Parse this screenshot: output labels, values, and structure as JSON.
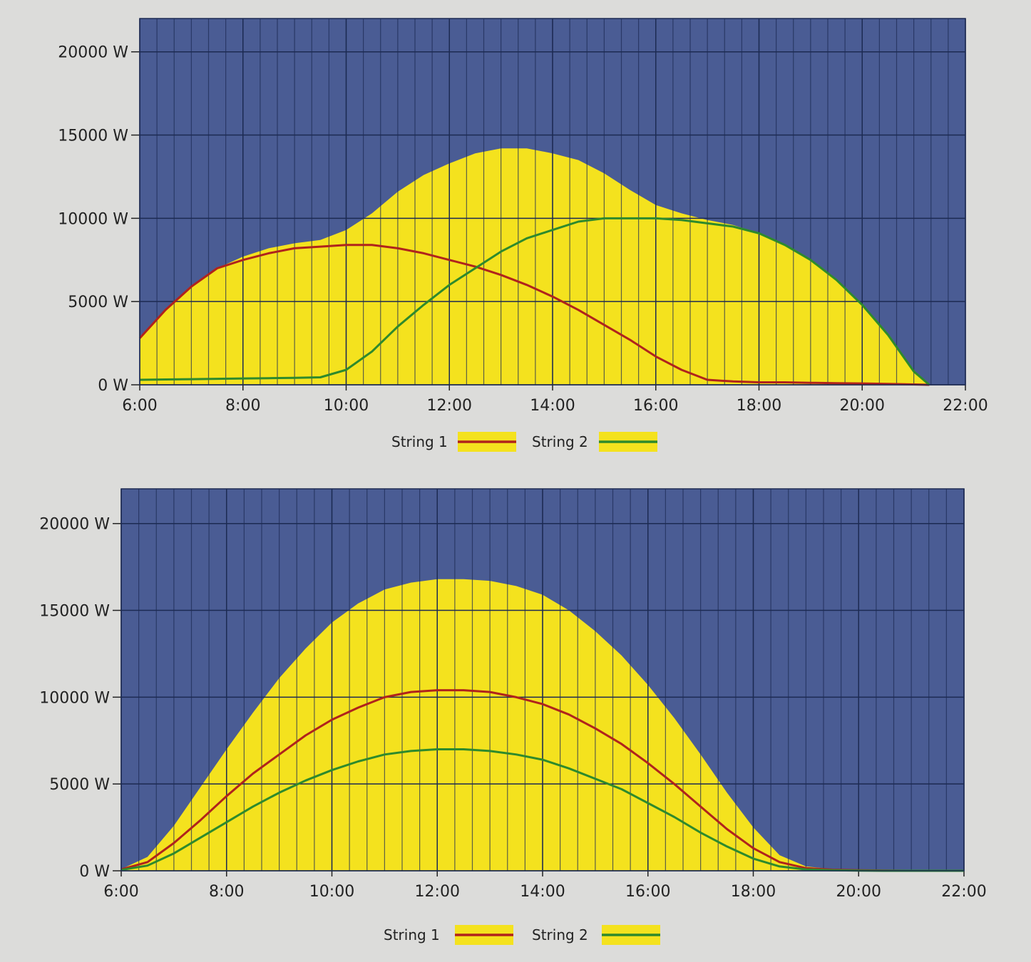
{
  "colors": {
    "plot_background": "#4a5c94",
    "fill": "#f4e21e",
    "grid": "#1c2a52",
    "string1": "#b0231c",
    "string2": "#2e8a2c",
    "legend_fill": "#f4e21e"
  },
  "chart_data": [
    {
      "type": "area",
      "title": "",
      "xlabel": "",
      "ylabel": "",
      "x_ticks": [
        "6:00",
        "8:00",
        "10:00",
        "12:00",
        "14:00",
        "16:00",
        "18:00",
        "20:00",
        "22:00"
      ],
      "y_ticks": [
        "0 W",
        "5000 W",
        "10000 W",
        "15000 W",
        "20000 W"
      ],
      "xlim_hours": [
        6,
        22
      ],
      "ylim": [
        0,
        22000
      ],
      "grid": true,
      "legend": "bottom-center",
      "x_hours": [
        6,
        6.5,
        7,
        7.5,
        8,
        8.5,
        9,
        9.5,
        10,
        10.5,
        11,
        11.5,
        12,
        12.5,
        13,
        13.5,
        14,
        14.5,
        15,
        15.5,
        16,
        16.5,
        17,
        17.5,
        18,
        18.5,
        19,
        19.5,
        20,
        20.5,
        21,
        21.3
      ],
      "total": [
        2800,
        4500,
        5900,
        7000,
        7700,
        8200,
        8500,
        8700,
        9300,
        10300,
        11600,
        12600,
        13300,
        13900,
        14200,
        14200,
        13900,
        13500,
        12700,
        11700,
        10800,
        10300,
        9900,
        9600,
        9100,
        8400,
        7500,
        6300,
        4800,
        3000,
        800,
        0
      ],
      "series": [
        {
          "name": "String 1",
          "color_key": "string1",
          "values": [
            2800,
            4500,
            5900,
            7000,
            7500,
            7900,
            8200,
            8300,
            8400,
            8400,
            8200,
            7900,
            7500,
            7100,
            6600,
            6000,
            5300,
            4500,
            3600,
            2700,
            1700,
            900,
            300,
            200,
            150,
            150,
            120,
            100,
            80,
            50,
            20,
            0
          ]
        },
        {
          "name": "String 2",
          "color_key": "string2",
          "values": [
            300,
            320,
            340,
            360,
            380,
            400,
            420,
            450,
            900,
            2000,
            3500,
            4800,
            6000,
            7000,
            8000,
            8800,
            9300,
            9800,
            10000,
            10000,
            10000,
            9900,
            9700,
            9500,
            9100,
            8400,
            7500,
            6300,
            4800,
            3000,
            800,
            0
          ]
        }
      ]
    },
    {
      "type": "area",
      "title": "",
      "xlabel": "",
      "ylabel": "",
      "x_ticks": [
        "6:00",
        "8:00",
        "10:00",
        "12:00",
        "14:00",
        "16:00",
        "18:00",
        "20:00",
        "22:00"
      ],
      "y_ticks": [
        "0 W",
        "5000 W",
        "10000 W",
        "15000 W",
        "20000 W"
      ],
      "xlim_hours": [
        6,
        22
      ],
      "ylim": [
        0,
        22000
      ],
      "grid": true,
      "legend": "bottom-center",
      "x_hours": [
        6,
        6.5,
        7,
        7.5,
        8,
        8.5,
        9,
        9.5,
        10,
        10.5,
        11,
        11.5,
        12,
        12.5,
        13,
        13.5,
        14,
        14.5,
        15,
        15.5,
        16,
        16.5,
        17,
        17.5,
        18,
        18.5,
        19,
        19.5,
        20,
        20.5,
        21,
        21.5,
        22
      ],
      "total": [
        100,
        800,
        2600,
        4800,
        7000,
        9100,
        11100,
        12800,
        14300,
        15400,
        16200,
        16600,
        16800,
        16800,
        16700,
        16400,
        15900,
        15000,
        13800,
        12400,
        10700,
        8800,
        6700,
        4500,
        2500,
        900,
        250,
        100,
        50,
        20,
        0,
        0,
        0
      ],
      "series": [
        {
          "name": "String 1",
          "color_key": "string1",
          "values": [
            80,
            500,
            1600,
            2900,
            4300,
            5600,
            6700,
            7800,
            8700,
            9400,
            10000,
            10300,
            10400,
            10400,
            10300,
            10000,
            9600,
            9000,
            8200,
            7300,
            6200,
            5000,
            3700,
            2400,
            1300,
            500,
            150,
            60,
            30,
            10,
            0,
            0,
            0
          ]
        },
        {
          "name": "String 2",
          "color_key": "string2",
          "values": [
            50,
            300,
            1000,
            1900,
            2800,
            3700,
            4500,
            5200,
            5800,
            6300,
            6700,
            6900,
            7000,
            7000,
            6900,
            6700,
            6400,
            5900,
            5300,
            4700,
            3900,
            3100,
            2200,
            1400,
            700,
            250,
            80,
            30,
            10,
            0,
            0,
            0,
            0
          ]
        }
      ]
    }
  ]
}
